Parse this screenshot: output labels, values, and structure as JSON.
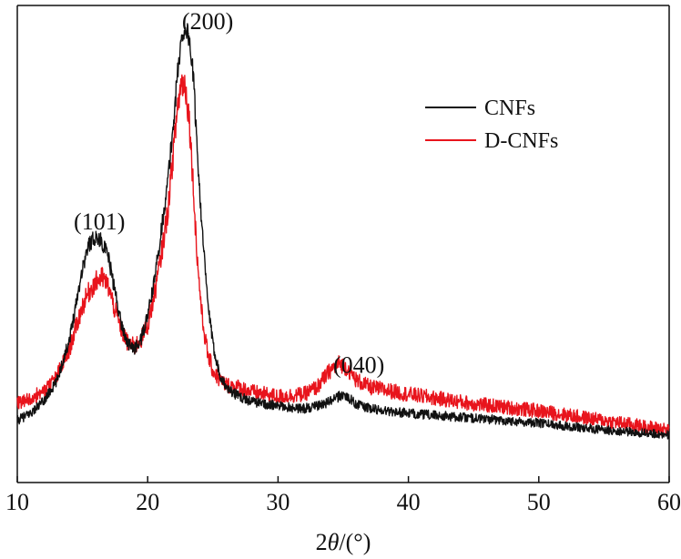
{
  "chart_data": {
    "type": "line",
    "title": "",
    "xlabel_prefix": "2",
    "xlabel_symbol": "θ",
    "xlabel_suffix": "/(°)",
    "ylabel": "",
    "xlim": [
      10,
      60
    ],
    "ylim": [
      0,
      1
    ],
    "grid": false,
    "legend_position": "top-right",
    "x_ticks": [
      10,
      20,
      30,
      40,
      50,
      60
    ],
    "x_tick_labels": [
      "10",
      "20",
      "30",
      "40",
      "50",
      "60"
    ],
    "series": [
      {
        "name": "CNFs",
        "color": "#111111",
        "x": [
          10,
          11,
          12,
          13,
          14,
          15,
          15.5,
          16,
          16.5,
          17,
          17.5,
          18,
          18.5,
          19,
          19.5,
          20,
          20.5,
          21,
          21.5,
          22,
          22.3,
          22.6,
          22.9,
          23.2,
          23.5,
          23.8,
          24.2,
          24.6,
          25,
          25.5,
          26,
          27,
          28,
          30,
          32,
          33,
          34,
          35,
          36,
          37,
          40,
          45,
          50,
          55,
          60
        ],
        "y": [
          0.13,
          0.145,
          0.17,
          0.21,
          0.3,
          0.45,
          0.5,
          0.515,
          0.505,
          0.47,
          0.4,
          0.33,
          0.29,
          0.28,
          0.3,
          0.35,
          0.42,
          0.52,
          0.62,
          0.76,
          0.86,
          0.93,
          0.955,
          0.93,
          0.85,
          0.7,
          0.52,
          0.38,
          0.29,
          0.23,
          0.2,
          0.18,
          0.17,
          0.16,
          0.155,
          0.16,
          0.17,
          0.185,
          0.165,
          0.155,
          0.145,
          0.135,
          0.125,
          0.11,
          0.1
        ]
      },
      {
        "name": "D-CNFs",
        "color": "#e8141c",
        "x": [
          10,
          11,
          12,
          13,
          14,
          15,
          15.5,
          16,
          16.5,
          17,
          17.5,
          18,
          18.5,
          19,
          19.5,
          20,
          20.5,
          21,
          21.5,
          22,
          22.3,
          22.6,
          22.9,
          23.2,
          23.5,
          23.8,
          24.2,
          24.6,
          25,
          25.5,
          26,
          27,
          28,
          30,
          32,
          33,
          34,
          34.7,
          35.3,
          36,
          37,
          40,
          45,
          50,
          55,
          60
        ],
        "y": [
          0.165,
          0.175,
          0.19,
          0.22,
          0.28,
          0.37,
          0.4,
          0.42,
          0.43,
          0.41,
          0.36,
          0.32,
          0.29,
          0.285,
          0.3,
          0.33,
          0.39,
          0.47,
          0.56,
          0.7,
          0.79,
          0.84,
          0.83,
          0.76,
          0.62,
          0.47,
          0.34,
          0.27,
          0.235,
          0.215,
          0.205,
          0.2,
          0.19,
          0.18,
          0.185,
          0.2,
          0.235,
          0.25,
          0.24,
          0.215,
          0.2,
          0.185,
          0.165,
          0.15,
          0.13,
          0.11
        ]
      }
    ],
    "annotations": [
      {
        "text": "(101)",
        "x": 16.3,
        "y": 0.58
      },
      {
        "text": "(200)",
        "x": 24.6,
        "y": 1.0
      },
      {
        "text": "(040)",
        "x": 36.2,
        "y": 0.28
      }
    ]
  }
}
